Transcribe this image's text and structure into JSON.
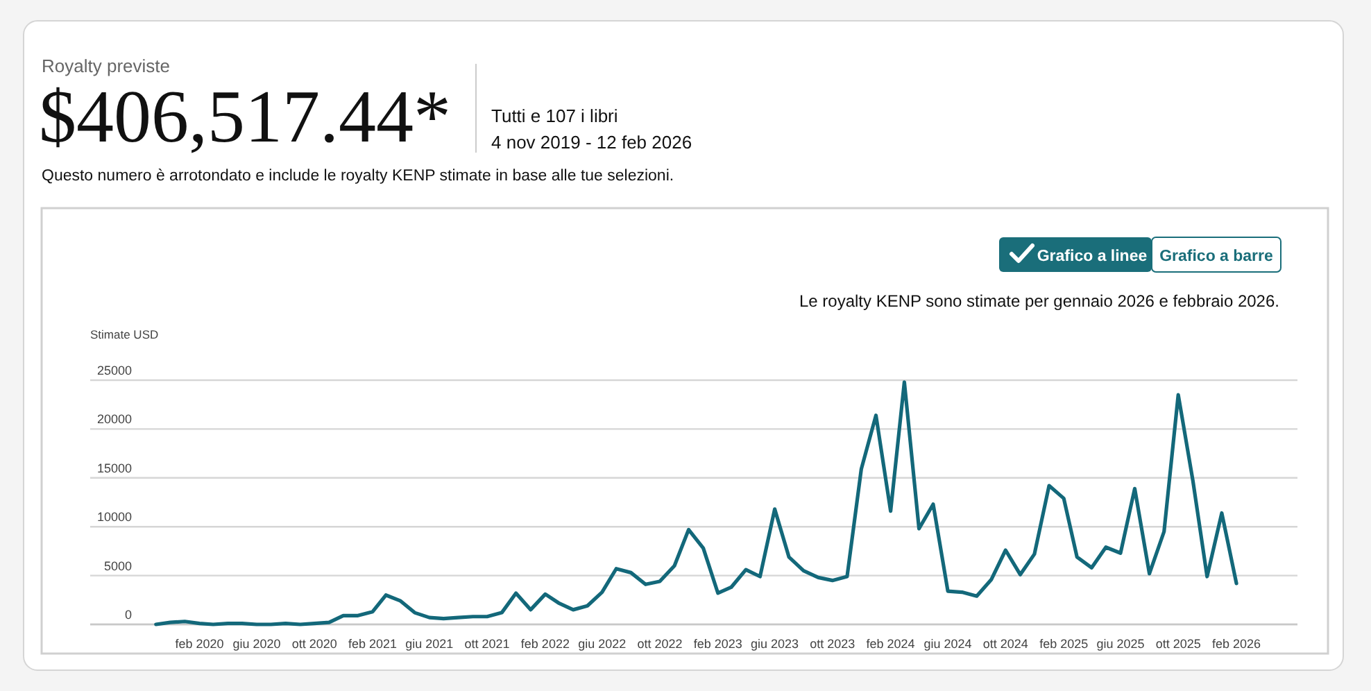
{
  "chart_data": {
    "type": "line",
    "title": "$406,517.44*",
    "subtitle": "Royalty previste",
    "ylabel": "Stimate USD",
    "annotations": [
      "Tutti e 107 i libri",
      "4 nov 2019 - 12 feb 2026",
      "Questo numero è arrotondato e include le royalty KENP stimate in base alle tue selezioni.",
      "Grafico a linee",
      "Grafico a barre",
      "Le royalty KENP sono stimate per gennaio 2026 e febbraio 2026."
    ],
    "x": [
      "2019-11",
      "2019-12",
      "2020-01",
      "2020-02",
      "2020-03",
      "2020-04",
      "2020-05",
      "2020-06",
      "2020-07",
      "2020-08",
      "2020-09",
      "2020-10",
      "2020-11",
      "2020-12",
      "2021-01",
      "2021-02",
      "2021-03",
      "2021-04",
      "2021-05",
      "2021-06",
      "2021-07",
      "2021-08",
      "2021-09",
      "2021-10",
      "2021-11",
      "2021-12",
      "2022-01",
      "2022-02",
      "2022-03",
      "2022-04",
      "2022-05",
      "2022-06",
      "2022-07",
      "2022-08",
      "2022-09",
      "2022-10",
      "2022-11",
      "2022-12",
      "2023-01",
      "2023-02",
      "2023-03",
      "2023-04",
      "2023-05",
      "2023-06",
      "2023-07",
      "2023-08",
      "2023-09",
      "2023-10",
      "2023-11",
      "2023-12",
      "2024-01",
      "2024-02",
      "2024-03",
      "2024-04",
      "2024-05",
      "2024-06",
      "2024-07",
      "2024-08",
      "2024-09",
      "2024-10",
      "2024-11",
      "2024-12",
      "2025-01",
      "2025-02",
      "2025-03",
      "2025-04",
      "2025-05",
      "2025-06",
      "2025-07",
      "2025-08",
      "2025-09",
      "2025-10",
      "2025-11",
      "2025-12",
      "2026-01",
      "2026-02"
    ],
    "series": [
      {
        "color": "#13687a",
        "values": [
          0,
          200,
          300,
          100,
          0,
          100,
          100,
          0,
          0,
          100,
          0,
          100,
          200,
          900,
          900,
          1300,
          3000,
          2400,
          1200,
          700,
          600,
          700,
          800,
          800,
          1200,
          3200,
          1500,
          3100,
          2200,
          1500,
          1900,
          3300,
          5700,
          5300,
          4100,
          4400,
          6000,
          9700,
          7800,
          3200,
          3800,
          5600,
          4900,
          11800,
          6900,
          5500,
          4800,
          4500,
          4900,
          15900,
          21400,
          11600,
          24800,
          9800,
          12300,
          3400,
          3300,
          2900,
          4600,
          7600,
          5100,
          7200,
          14200,
          12900,
          6900,
          5800,
          7900,
          7300,
          13900,
          5200,
          9500,
          23500,
          14700,
          4900,
          11400,
          4200
        ]
      }
    ],
    "xlim": [
      "2019-06-15",
      "2026-06-10"
    ],
    "xticks": [
      {
        "value": "2020-02",
        "label": "feb 2020"
      },
      {
        "value": "2020-06",
        "label": "giu 2020"
      },
      {
        "value": "2020-10",
        "label": "ott 2020"
      },
      {
        "value": "2021-02",
        "label": "feb 2021"
      },
      {
        "value": "2021-06",
        "label": "giu 2021"
      },
      {
        "value": "2021-10",
        "label": "ott 2021"
      },
      {
        "value": "2022-02",
        "label": "feb 2022"
      },
      {
        "value": "2022-06",
        "label": "giu 2022"
      },
      {
        "value": "2022-10",
        "label": "ott 2022"
      },
      {
        "value": "2023-02",
        "label": "feb 2023"
      },
      {
        "value": "2023-06",
        "label": "giu 2023"
      },
      {
        "value": "2023-10",
        "label": "ott 2023"
      },
      {
        "value": "2024-02",
        "label": "feb 2024"
      },
      {
        "value": "2024-06",
        "label": "giu 2024"
      },
      {
        "value": "2024-10",
        "label": "ott 2024"
      },
      {
        "value": "2025-02",
        "label": "feb 2025"
      },
      {
        "value": "2025-06",
        "label": "giu 2025"
      },
      {
        "value": "2025-10",
        "label": "ott 2025"
      },
      {
        "value": "2026-02",
        "label": "feb 2026"
      }
    ],
    "ylim": [
      0,
      25000
    ],
    "yticks": [
      0,
      5000,
      10000,
      15000,
      20000,
      25000
    ],
    "grid": "y",
    "marker": "none",
    "line_style": "solid"
  }
}
